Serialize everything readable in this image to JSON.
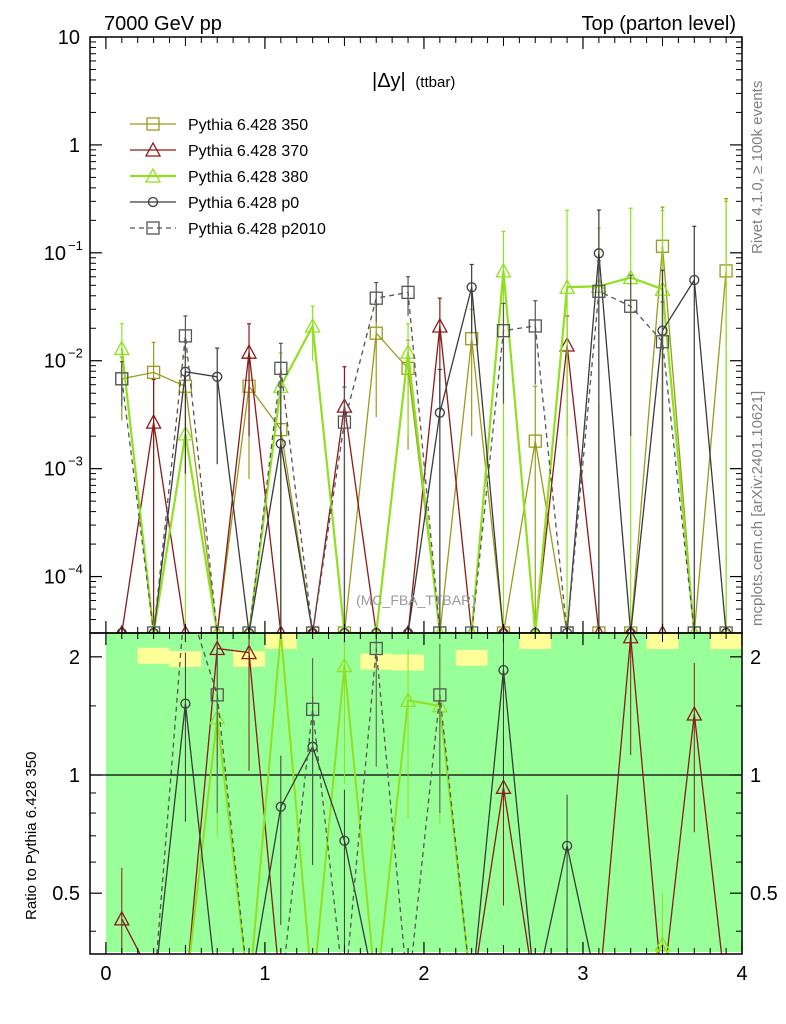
{
  "chart_data": {
    "type": "line",
    "top_left_label": "7000 GeV pp",
    "top_right_label": "Top (parton level)",
    "title": "|Δy|",
    "title_suffix": "(ttbar)",
    "watermark": "(MC_FBA_TTBAR)",
    "side_label_top": "Rivet 4.1.0, ≥ 100k events",
    "side_label_bottom": "mcplots.cern.ch [arXiv:2401.10621]",
    "ratio_ylabel": "Ratio to Pythia 6.428 350",
    "xlim": [
      -0.1,
      4.0
    ],
    "ylim_main": [
      3e-05,
      10
    ],
    "ylim_ratio": [
      0.35,
      2.3
    ],
    "x_ticks": [
      "0",
      "1",
      "2",
      "3",
      "4"
    ],
    "main_y_ticks": [
      {
        "value": 10,
        "label": "10"
      },
      {
        "value": 1,
        "label": "1"
      },
      {
        "value": 0.1,
        "label": "10",
        "exp": "−1"
      },
      {
        "value": 0.01,
        "label": "10",
        "exp": "−2"
      },
      {
        "value": 0.001,
        "label": "10",
        "exp": "−3"
      },
      {
        "value": 0.0001,
        "label": "10",
        "exp": "−4"
      }
    ],
    "ratio_y_ticks_left": [
      "2",
      "1",
      "0.5"
    ],
    "ratio_y_ticks_right": [
      "2",
      "1",
      "0.5"
    ],
    "ratio_y_tick_values": [
      2,
      1,
      0.5
    ],
    "x": [
      0.1,
      0.3,
      0.5,
      0.7,
      0.9,
      1.1,
      1.3,
      1.5,
      1.7,
      1.9,
      2.1,
      2.3,
      2.5,
      2.7,
      2.9,
      3.1,
      3.3,
      3.5,
      3.7,
      3.9
    ],
    "series": [
      {
        "name": "Pythia 6.428 350",
        "color": "#9a9a1e",
        "marker": "square",
        "dash": false,
        "values": [
          0.0068,
          0.0078,
          0.0058,
          0,
          0.0058,
          0.0023,
          0,
          0,
          0.018,
          0.0085,
          0,
          0.016,
          0,
          0.0018,
          0,
          0,
          0,
          0.115,
          0,
          0.068
        ],
        "errors": [
          0.004,
          0.007,
          0.005,
          0,
          0.005,
          0.004,
          0,
          0,
          0.015,
          0.007,
          0,
          0.014,
          0,
          0.004,
          0,
          0,
          0,
          0.15,
          0,
          0.25
        ]
      },
      {
        "name": "Pythia 6.428 370",
        "color": "#8b1a1a",
        "marker": "triangle",
        "dash": false,
        "values": [
          0,
          0.0027,
          0,
          0,
          0.012,
          0,
          0,
          0.0038,
          0,
          0,
          0.021,
          0,
          0,
          0,
          0.014,
          0,
          0,
          0,
          0,
          0
        ],
        "errors": [
          0,
          0.004,
          0,
          0,
          0.01,
          0,
          0,
          0.005,
          0,
          0,
          0.017,
          0,
          0,
          0,
          0.012,
          0,
          0,
          0,
          0,
          0
        ]
      },
      {
        "name": "Pythia 6.428 380",
        "color": "#90e020",
        "marker": "triangle",
        "dash": false,
        "values": [
          0.013,
          0,
          0.0021,
          0,
          0,
          0.0058,
          0.021,
          0,
          0,
          0.012,
          0,
          0,
          0.068,
          0,
          0.048,
          0.049,
          0.059,
          0.046,
          0,
          0
        ],
        "errors": [
          0.009,
          0,
          0.003,
          0,
          0,
          0.006,
          0.011,
          0,
          0,
          0.01,
          0,
          0,
          0.09,
          0,
          0.2,
          0.12,
          0.2,
          0.2,
          0,
          0.3
        ]
      },
      {
        "name": "Pythia 6.428 p0",
        "color": "#3a3a3a",
        "marker": "circle",
        "dash": false,
        "values": [
          0,
          0,
          0.0079,
          0.0071,
          0,
          0.0017,
          0,
          0,
          0,
          0,
          0.0033,
          0.048,
          0,
          0,
          0,
          0.099,
          0,
          0.019,
          0.056,
          0
        ],
        "errors": [
          0,
          0,
          0.007,
          0.006,
          0,
          0.004,
          0,
          0,
          0,
          0,
          0.005,
          0.03,
          0,
          0,
          0,
          0.15,
          0,
          0.05,
          0.12,
          0
        ]
      },
      {
        "name": "Pythia 6.428 p2010",
        "color": "#555555",
        "marker": "square",
        "dash": true,
        "values": [
          0.0068,
          0,
          0.017,
          0,
          0,
          0.0085,
          0,
          0.0027,
          0.038,
          0.043,
          0,
          0,
          0.019,
          0.021,
          0,
          0.044,
          0.032,
          0.015,
          0,
          0
        ],
        "errors": [
          0.003,
          0,
          0.009,
          0,
          0,
          0.006,
          0,
          0.003,
          0.015,
          0.017,
          0,
          0,
          0.015,
          0.015,
          0,
          0.04,
          0.03,
          0.02,
          0,
          0
        ]
      }
    ],
    "ratio_series": [
      {
        "name": "Pythia 6.428 370",
        "values": [
          0.43,
          0.3,
          0,
          2.1,
          2.05,
          0,
          0,
          0,
          0,
          0,
          0,
          0,
          0.93,
          0,
          0,
          0,
          2.25,
          0,
          1.43,
          0
        ]
      },
      {
        "name": "Pythia 6.428 380",
        "values": [
          0,
          0,
          0,
          1.4,
          0,
          2.3,
          0,
          1.9,
          0,
          1.55,
          1.5,
          0,
          0,
          0,
          0,
          0,
          0,
          0.37,
          0,
          0
        ]
      },
      {
        "name": "Pythia 6.428 p0",
        "values": [
          0,
          0,
          1.52,
          0,
          0,
          0.83,
          1.18,
          0.68,
          0,
          0,
          0,
          0,
          1.85,
          0,
          0.66,
          0,
          0,
          0,
          0,
          0
        ]
      },
      {
        "name": "Pythia 6.428 p2010",
        "values": [
          0,
          0,
          2.9,
          1.6,
          0,
          0,
          1.47,
          0,
          2.1,
          0,
          1.6,
          0,
          0,
          0,
          0,
          0,
          0,
          0,
          0,
          0
        ]
      }
    ],
    "ratio_band_colors": {
      "inner": "#ffff99",
      "outer": "#99ff99"
    }
  }
}
